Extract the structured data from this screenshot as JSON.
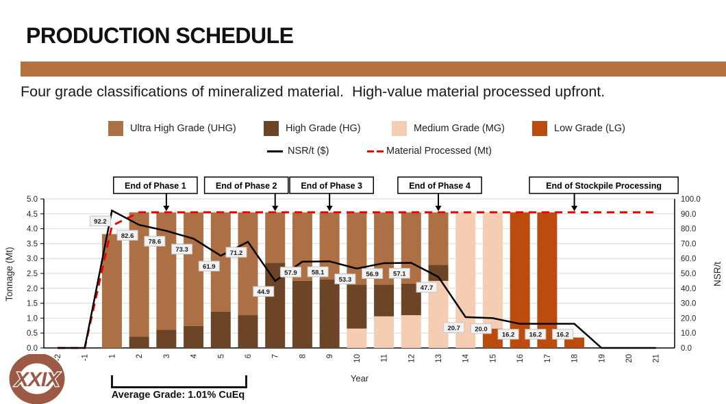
{
  "header": {
    "title": "PRODUCTION SCHEDULE",
    "subtitle": "Four grade classifications of mineralized material.  High-value material processed upfront."
  },
  "accent_color": "#B5703F",
  "legend": {
    "items": [
      {
        "label": "Ultra High Grade (UHG)",
        "color": "#AD7044"
      },
      {
        "label": "High Grade (HG)",
        "color": "#6C4526"
      },
      {
        "label": "Medium Grade (MG)",
        "color": "#F5CDB2"
      },
      {
        "label": "Low Grade (LG)",
        "color": "#BC4B0E"
      }
    ],
    "line_items": [
      {
        "label": "NSR/t ($)",
        "color": "#000000",
        "style": "solid"
      },
      {
        "label": "Material Processed (Mt)",
        "color": "#F20000",
        "style": "dashed"
      }
    ]
  },
  "chart_data": {
    "type": "combo: stacked bar + line",
    "categories": [
      "-2",
      "-1",
      "1",
      "2",
      "3",
      "4",
      "5",
      "6",
      "7",
      "8",
      "9",
      "10",
      "11",
      "12",
      "13",
      "14",
      "15",
      "16",
      "17",
      "18",
      "19",
      "20",
      "21"
    ],
    "x_label": "Year",
    "left_axis": {
      "label": "Tonnage (Mt)",
      "min": 0.0,
      "max": 5.0,
      "step": 0.5
    },
    "right_axis": {
      "label": "NSR/t",
      "min": 0.0,
      "max": 100.0,
      "step": 10.0
    },
    "grid": true,
    "series": [
      {
        "key": "lg",
        "name": "Low Grade (LG)",
        "color": "#BC4B0E",
        "values": [
          0,
          0,
          0,
          0,
          0,
          0,
          0,
          0,
          0,
          0,
          0,
          0,
          0,
          0,
          0,
          0,
          0.65,
          4.55,
          4.55,
          0.35,
          0,
          0,
          0
        ]
      },
      {
        "key": "mg",
        "name": "Medium Grade (MG)",
        "color": "#F5CDB2",
        "values": [
          0,
          0,
          0,
          0,
          0,
          0,
          0,
          0,
          0,
          0,
          0,
          0.65,
          1.06,
          1.1,
          2.25,
          4.55,
          3.9,
          0,
          0,
          0,
          0,
          0,
          0
        ]
      },
      {
        "key": "hg",
        "name": "High Grade (HG)",
        "color": "#6C4526",
        "values": [
          0,
          0,
          0,
          0.38,
          0.61,
          0.74,
          1.22,
          1.1,
          2.86,
          2.25,
          2.3,
          1.47,
          1.06,
          1.06,
          0.54,
          0,
          0,
          0,
          0,
          0,
          0,
          0,
          0
        ]
      },
      {
        "key": "uhg",
        "name": "Ultra High Grade (UHG)",
        "color": "#AD7044",
        "values": [
          0,
          0,
          3.82,
          4.17,
          3.94,
          3.81,
          3.33,
          3.45,
          1.69,
          2.3,
          2.25,
          2.43,
          2.43,
          2.39,
          1.76,
          0,
          0,
          0,
          0,
          0,
          0,
          0,
          0
        ]
      }
    ],
    "nsr_line": {
      "name": "NSR/t ($)",
      "color": "#000000",
      "values": [
        0,
        0,
        92.2,
        82.6,
        78.6,
        73.3,
        61.9,
        71.2,
        44.9,
        57.9,
        58.1,
        53.3,
        56.9,
        57.1,
        47.7,
        20.7,
        20.0,
        16.2,
        16.2,
        16.2,
        0,
        0,
        0
      ]
    },
    "material_line": {
      "name": "Material Processed (Mt)",
      "color": "#F20000",
      "values": [
        0,
        0,
        4.1,
        4.55,
        4.55,
        4.55,
        4.55,
        4.55,
        4.55,
        4.55,
        4.55,
        4.55,
        4.55,
        4.55,
        4.55,
        4.55,
        4.55,
        4.55,
        4.55,
        4.55,
        4.55,
        4.55,
        4.55
      ]
    },
    "annotations": [
      {
        "label": "End of Phase 1",
        "year": "3",
        "box_dx": -16
      },
      {
        "label": "End of Phase 2",
        "year": "7",
        "box_dx": -42
      },
      {
        "label": "End of Phase 3",
        "year": "9",
        "box_dx": 3
      },
      {
        "label": "End of Phase 4",
        "year": "13",
        "box_dx": 2
      },
      {
        "label": "End of Stockpile Processing",
        "year": "18",
        "box_dx": 43
      }
    ]
  },
  "average_grade": {
    "label": "Average Grade:  1.01% CuEq",
    "from_year": "1",
    "to_year": "6"
  },
  "logo": {
    "text": "XXIX",
    "color": "#9C5944"
  }
}
